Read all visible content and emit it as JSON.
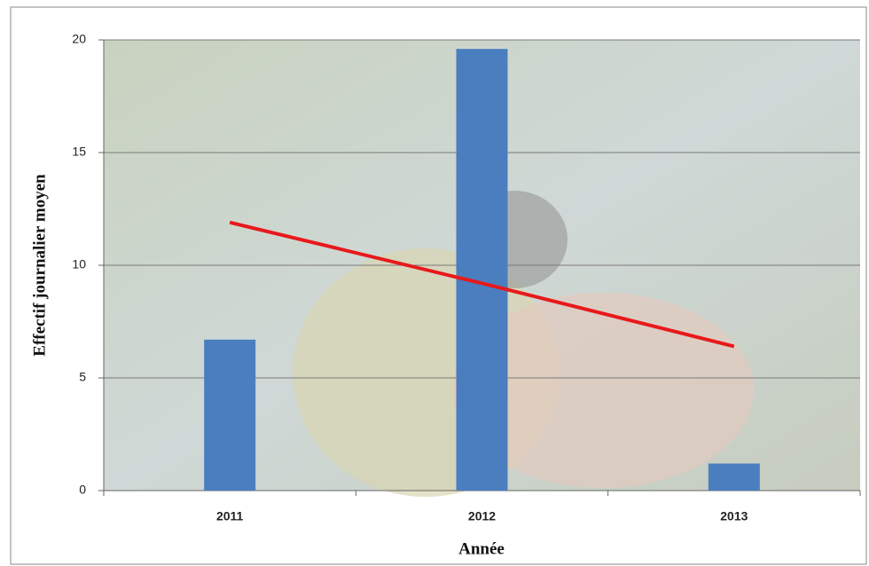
{
  "chart_data": {
    "type": "bar",
    "x_label": "Année",
    "y_label": "Effectif journalier moyen",
    "categories": [
      "2011",
      "2012",
      "2013"
    ],
    "series": [
      {
        "type": "bar",
        "color": "#4a7ebf",
        "values": [
          6.7,
          19.6,
          1.2
        ]
      },
      {
        "type": "line",
        "color": "#e8191b",
        "values": [
          11.9,
          9.2,
          6.4
        ]
      }
    ],
    "ylim": [
      0,
      20
    ],
    "yticks": [
      0,
      5,
      10,
      15,
      20
    ],
    "grid": true
  }
}
